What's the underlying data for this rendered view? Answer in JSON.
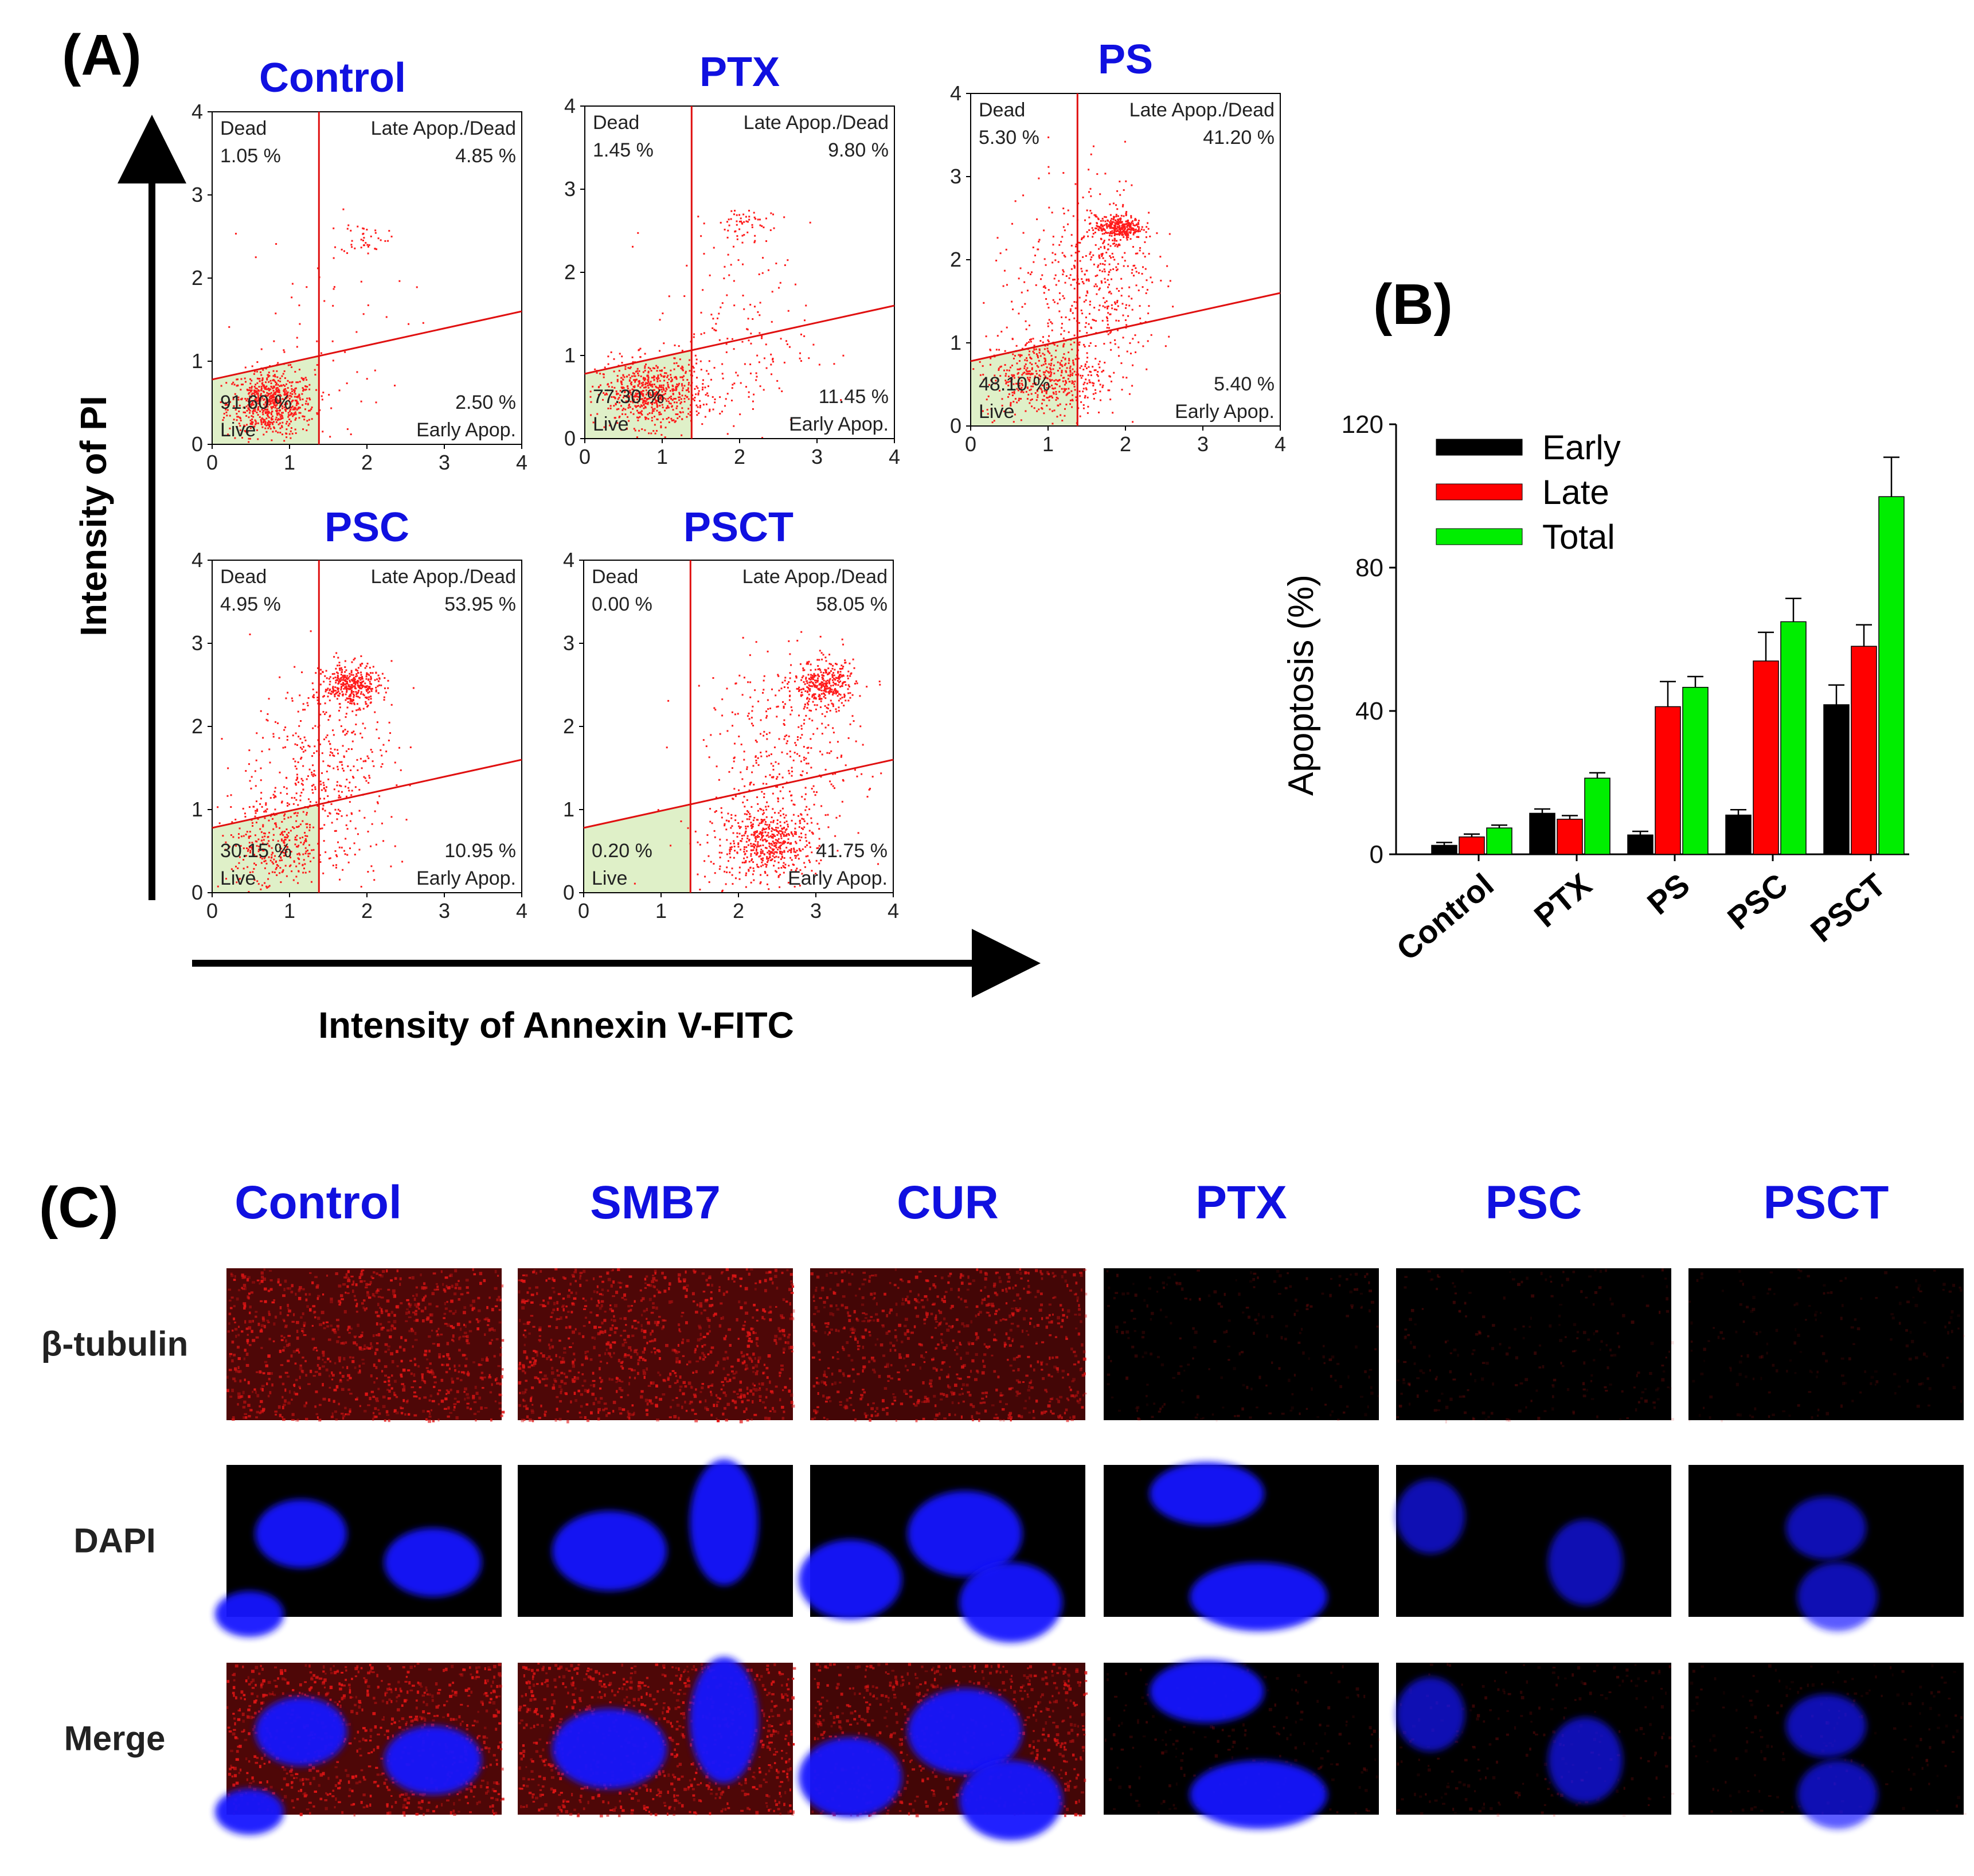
{
  "panel_labels": {
    "a": "(A)",
    "b": "(B)",
    "c": "(C)"
  },
  "colors": {
    "title_blue": "#1010e0",
    "gate_red": "#e01010",
    "dot_red": "#ff1a1a",
    "live_fill": "#dff0c8",
    "early": "#000000",
    "late": "#ff0000",
    "total": "#00ee00",
    "stain_red": "#e01515",
    "stain_blue": "#1515ff"
  },
  "flow": {
    "y_axis_label": "Intensity of PI",
    "x_axis_label": "Intensity of Annexin V-FITC",
    "tick_labels": [
      "0",
      "1",
      "2",
      "3",
      "4"
    ],
    "quadrant_names": {
      "dead": "Dead",
      "late": "Late Apop./Dead",
      "early": "Early Apop.",
      "live": "Live"
    },
    "plots": [
      {
        "title": "Control",
        "dead": "1.05 %",
        "late": "4.85 %",
        "live": "91.60 %",
        "early": "2.50 %"
      },
      {
        "title": "PTX",
        "dead": "1.45 %",
        "late": "9.80 %",
        "live": "77.30 %",
        "early": "11.45 %"
      },
      {
        "title": "PS",
        "dead": "5.30 %",
        "late": "41.20 %",
        "live": "48.10 %",
        "early": "5.40 %"
      },
      {
        "title": "PSC",
        "dead": "4.95 %",
        "late": "53.95 %",
        "live": "30.15 %",
        "early": "10.95 %"
      },
      {
        "title": "PSCT",
        "dead": "0.00 %",
        "late": "58.05 %",
        "live": "0.20 %",
        "early": "41.75 %"
      }
    ]
  },
  "chart_data": [
    {
      "type": "bar",
      "title": "(B)",
      "categories": [
        "Control",
        "PTX",
        "PS",
        "PSC",
        "PSCT"
      ],
      "series": [
        {
          "name": "Early",
          "values": [
            2.5,
            11.45,
            5.4,
            10.95,
            41.75
          ],
          "errors": [
            0.8,
            1.2,
            1.0,
            1.5,
            5.5
          ]
        },
        {
          "name": "Late",
          "values": [
            4.85,
            9.8,
            41.2,
            53.95,
            58.05
          ],
          "errors": [
            0.8,
            1.0,
            7.0,
            8.0,
            6.0
          ]
        },
        {
          "name": "Total",
          "values": [
            7.35,
            21.25,
            46.6,
            64.9,
            99.8
          ],
          "errors": [
            0.8,
            1.5,
            3.0,
            6.5,
            11.0
          ]
        }
      ],
      "xlabel": "",
      "ylabel": "Apoptosis (%)",
      "ylim": [
        0,
        120
      ],
      "yticks": [
        "0",
        "40",
        "80",
        "120"
      ],
      "legend": "top-left"
    }
  ],
  "microscopy": {
    "columns": [
      "Control",
      "SMB7",
      "CUR",
      "PTX",
      "PSC",
      "PSCT"
    ],
    "rows": [
      "β-tubulin",
      "DAPI",
      "Merge"
    ]
  }
}
